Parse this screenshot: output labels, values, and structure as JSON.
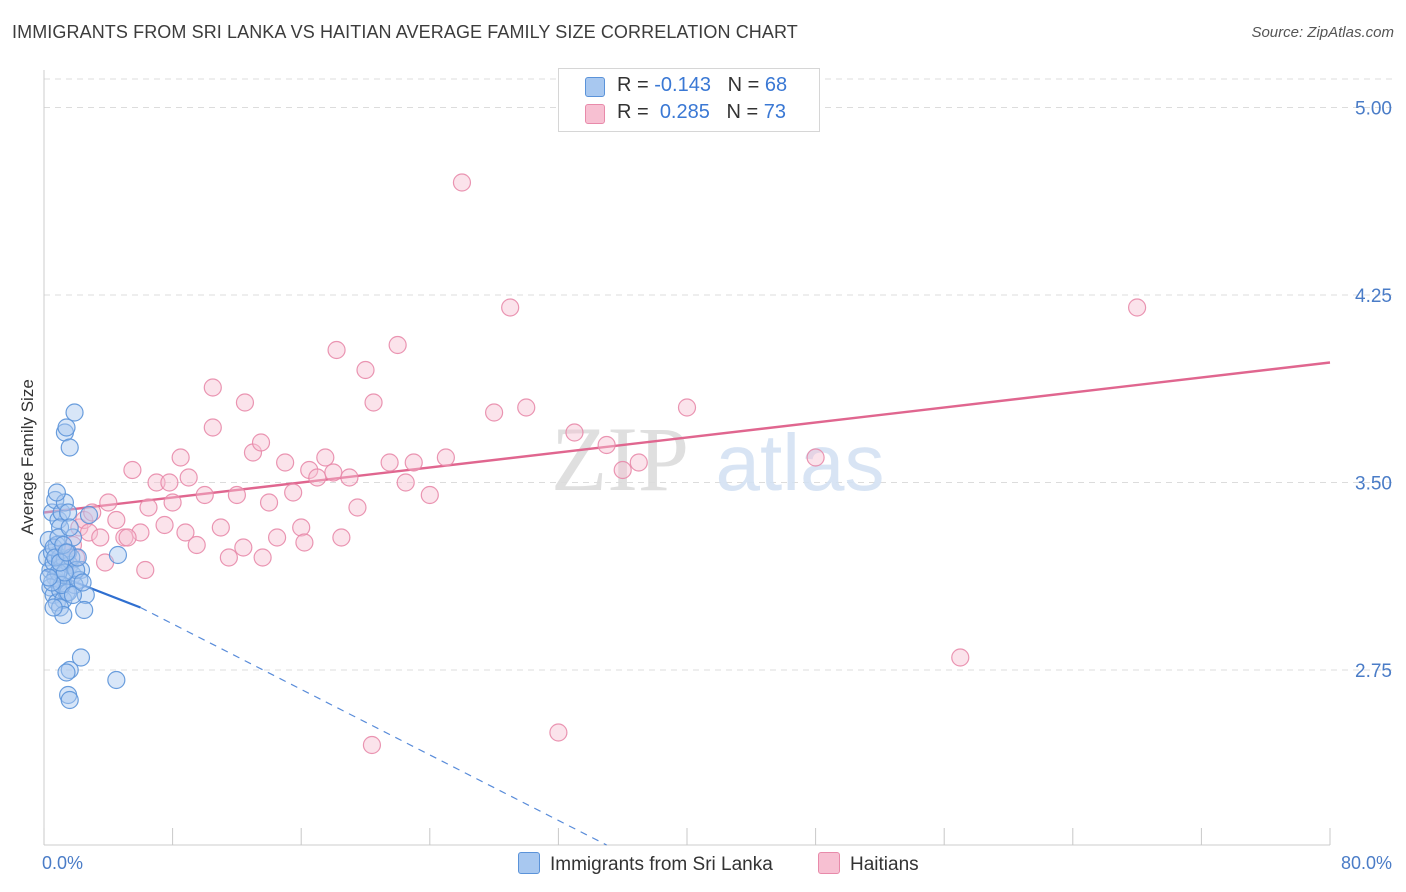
{
  "title": "IMMIGRANTS FROM SRI LANKA VS HAITIAN AVERAGE FAMILY SIZE CORRELATION CHART",
  "source": "Source: ZipAtlas.com",
  "watermark": {
    "zip": "ZIP",
    "atlas": "atlas"
  },
  "colors": {
    "blue_fill": "#a8c8f0",
    "blue_stroke": "#5b93d9",
    "blue_line": "#2f6fd0",
    "pink_fill": "#f7c0d2",
    "pink_stroke": "#e88aaa",
    "pink_line": "#e0668f",
    "tick_text": "#4a7cc7",
    "grid": "#dcdcdc"
  },
  "legend": {
    "rows": [
      {
        "r_label": "R =",
        "r_value": "-0.143",
        "n_label": "N =",
        "n_value": "68",
        "series": "blue"
      },
      {
        "r_label": "R =",
        "r_value": "0.285",
        "n_label": "N =",
        "n_value": "73",
        "series": "pink"
      }
    ]
  },
  "bottom_legend": [
    {
      "label": "Immigrants from Sri Lanka",
      "series": "blue"
    },
    {
      "label": "Haitians",
      "series": "pink"
    }
  ],
  "chart_data": {
    "type": "scatter",
    "title": "IMMIGRANTS FROM SRI LANKA VS HAITIAN AVERAGE FAMILY SIZE CORRELATION CHART",
    "xlabel": "",
    "ylabel": "Average Family Size",
    "xlim": [
      0,
      80
    ],
    "ylim": [
      2.05,
      5.15
    ],
    "x_tick_labels": [
      "0.0%",
      "80.0%"
    ],
    "y_ticks": [
      2.75,
      3.5,
      4.25,
      5.0
    ],
    "y_tick_labels": [
      "2.75",
      "3.50",
      "4.25",
      "5.00"
    ],
    "grid": true,
    "series": [
      {
        "name": "Immigrants from Sri Lanka",
        "color": "blue",
        "points": [
          [
            0.2,
            3.2
          ],
          [
            0.3,
            3.27
          ],
          [
            0.4,
            3.15
          ],
          [
            0.5,
            3.22
          ],
          [
            0.6,
            3.18
          ],
          [
            0.7,
            3.12
          ],
          [
            0.8,
            3.25
          ],
          [
            0.9,
            3.1
          ],
          [
            1.0,
            3.2
          ],
          [
            1.1,
            3.16
          ],
          [
            0.4,
            3.08
          ],
          [
            0.6,
            3.05
          ],
          [
            0.8,
            3.02
          ],
          [
            1.0,
            3.07
          ],
          [
            1.2,
            3.13
          ],
          [
            1.3,
            3.19
          ],
          [
            1.5,
            3.22
          ],
          [
            1.6,
            3.17
          ],
          [
            1.8,
            3.13
          ],
          [
            1.4,
            3.06
          ],
          [
            1.2,
            3.03
          ],
          [
            1.0,
            3.0
          ],
          [
            1.2,
            2.97
          ],
          [
            0.5,
            3.38
          ],
          [
            0.7,
            3.43
          ],
          [
            0.9,
            3.35
          ],
          [
            1.1,
            3.38
          ],
          [
            1.3,
            3.42
          ],
          [
            1.5,
            3.38
          ],
          [
            1.8,
            3.28
          ],
          [
            0.8,
            3.46
          ],
          [
            2.8,
            3.37
          ],
          [
            1.3,
            3.7
          ],
          [
            1.6,
            3.64
          ],
          [
            1.9,
            3.78
          ],
          [
            1.4,
            3.72
          ],
          [
            2.3,
            3.15
          ],
          [
            2.6,
            3.05
          ],
          [
            2.5,
            2.99
          ],
          [
            2.2,
            3.11
          ],
          [
            1.9,
            3.09
          ],
          [
            1.5,
            3.06
          ],
          [
            2.3,
            2.8
          ],
          [
            1.6,
            2.75
          ],
          [
            1.4,
            2.74
          ],
          [
            1.5,
            2.65
          ],
          [
            1.6,
            2.63
          ],
          [
            4.5,
            2.71
          ],
          [
            4.6,
            3.21
          ],
          [
            1.0,
            3.32
          ],
          [
            0.6,
            3.24
          ],
          [
            0.9,
            3.14
          ],
          [
            1.7,
            3.2
          ],
          [
            2.0,
            3.15
          ],
          [
            1.1,
            3.09
          ],
          [
            0.5,
            3.1
          ],
          [
            0.7,
            3.2
          ],
          [
            1.3,
            3.14
          ],
          [
            2.1,
            3.2
          ],
          [
            0.9,
            3.28
          ],
          [
            1.2,
            3.25
          ],
          [
            1.6,
            3.32
          ],
          [
            0.3,
            3.12
          ],
          [
            0.6,
            3.0
          ],
          [
            1.8,
            3.05
          ],
          [
            2.4,
            3.1
          ],
          [
            1.0,
            3.18
          ],
          [
            1.4,
            3.22
          ]
        ]
      },
      {
        "name": "Haitians",
        "color": "pink",
        "points": [
          [
            1.2,
            3.22
          ],
          [
            1.5,
            3.18
          ],
          [
            1.8,
            3.25
          ],
          [
            2.0,
            3.2
          ],
          [
            2.2,
            3.32
          ],
          [
            2.5,
            3.35
          ],
          [
            2.8,
            3.3
          ],
          [
            3.0,
            3.38
          ],
          [
            3.5,
            3.28
          ],
          [
            4.0,
            3.42
          ],
          [
            4.5,
            3.35
          ],
          [
            5.0,
            3.28
          ],
          [
            5.5,
            3.55
          ],
          [
            6.0,
            3.3
          ],
          [
            6.5,
            3.4
          ],
          [
            7.0,
            3.5
          ],
          [
            7.5,
            3.33
          ],
          [
            8.0,
            3.42
          ],
          [
            8.5,
            3.6
          ],
          [
            9.0,
            3.52
          ],
          [
            9.5,
            3.25
          ],
          [
            10.0,
            3.45
          ],
          [
            10.5,
            3.72
          ],
          [
            11.0,
            3.32
          ],
          [
            11.5,
            3.2
          ],
          [
            12.0,
            3.45
          ],
          [
            12.5,
            3.82
          ],
          [
            13.0,
            3.62
          ],
          [
            13.5,
            3.66
          ],
          [
            14.0,
            3.42
          ],
          [
            14.5,
            3.28
          ],
          [
            15.0,
            3.58
          ],
          [
            15.5,
            3.46
          ],
          [
            16.0,
            3.32
          ],
          [
            16.5,
            3.55
          ],
          [
            17.0,
            3.52
          ],
          [
            17.5,
            3.6
          ],
          [
            18.0,
            3.54
          ],
          [
            18.5,
            3.28
          ],
          [
            19.0,
            3.52
          ],
          [
            19.5,
            3.4
          ],
          [
            20.0,
            3.95
          ],
          [
            20.5,
            3.82
          ],
          [
            21.5,
            3.58
          ],
          [
            22.0,
            4.05
          ],
          [
            23.0,
            3.58
          ],
          [
            22.5,
            3.5
          ],
          [
            24.0,
            3.45
          ],
          [
            25.0,
            3.6
          ],
          [
            26.0,
            4.7
          ],
          [
            28.0,
            3.78
          ],
          [
            29.0,
            4.2
          ],
          [
            30.0,
            3.8
          ],
          [
            33.0,
            3.7
          ],
          [
            35.0,
            3.65
          ],
          [
            36.0,
            3.55
          ],
          [
            37.0,
            3.58
          ],
          [
            40.0,
            3.8
          ],
          [
            48.0,
            3.6
          ],
          [
            10.5,
            3.88
          ],
          [
            7.8,
            3.5
          ],
          [
            18.2,
            4.03
          ],
          [
            5.2,
            3.28
          ],
          [
            8.8,
            3.3
          ],
          [
            3.8,
            3.18
          ],
          [
            13.6,
            3.2
          ],
          [
            12.4,
            3.24
          ],
          [
            16.2,
            3.26
          ],
          [
            20.4,
            2.45
          ],
          [
            32.0,
            2.5
          ],
          [
            68.0,
            4.2
          ],
          [
            57.0,
            2.8
          ],
          [
            6.3,
            3.15
          ]
        ]
      }
    ],
    "trend_lines": [
      {
        "series": "Immigrants from Sri Lanka",
        "solid_from": [
          0,
          3.15
        ],
        "solid_to": [
          6.0,
          3.0
        ],
        "dashed_to": [
          35.0,
          2.05
        ]
      },
      {
        "series": "Haitians",
        "from": [
          0,
          3.38
        ],
        "to": [
          80,
          3.98
        ]
      }
    ]
  }
}
